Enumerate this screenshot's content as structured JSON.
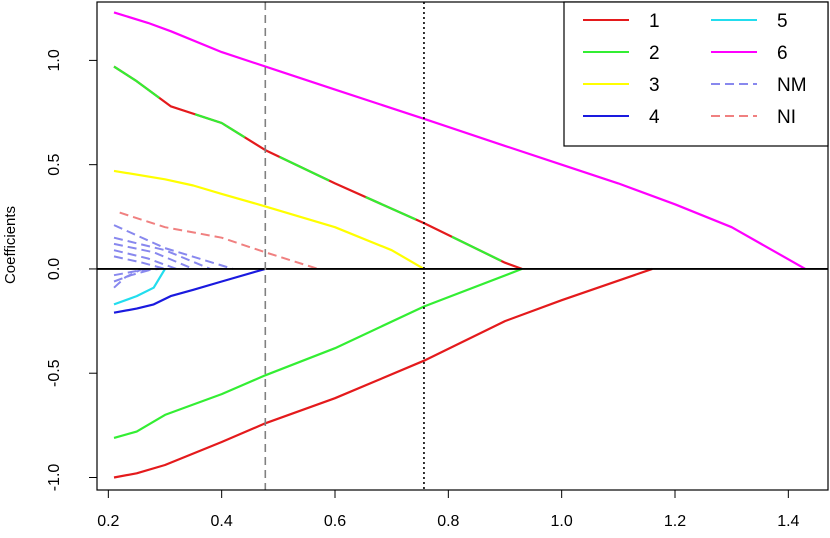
{
  "chart_data": {
    "type": "line",
    "title": "",
    "xlabel": "",
    "ylabel": "Coefficients",
    "xlim": [
      0.18,
      1.47
    ],
    "ylim": [
      -1.06,
      1.28
    ],
    "xticks": [
      0.2,
      0.4,
      0.6,
      0.8,
      1.0,
      1.2,
      1.4
    ],
    "xtick_labels": [
      "0.2",
      "0.4",
      "0.6",
      "0.8",
      "1.0",
      "1.2",
      "1.4"
    ],
    "yticks": [
      -1.0,
      -0.5,
      0.0,
      0.5,
      1.0
    ],
    "ytick_labels": [
      "-1.0",
      "-0.5",
      "0.0",
      "0.5",
      "1.0"
    ],
    "grid": false,
    "legend_position": "top-right",
    "vlines": [
      {
        "x": 0.477,
        "style": "dashed",
        "color": "#808080"
      },
      {
        "x": 0.757,
        "style": "dotted",
        "color": "#000000"
      }
    ],
    "hline": {
      "y": 0.0,
      "color": "#000000"
    },
    "legend": [
      {
        "label": "1",
        "color": "#e41a1c",
        "style": "solid"
      },
      {
        "label": "2",
        "color": "#33ee33",
        "style": "solid"
      },
      {
        "label": "3",
        "color": "#ffff00",
        "style": "solid"
      },
      {
        "label": "4",
        "color": "#1a1adf",
        "style": "solid"
      },
      {
        "label": "5",
        "color": "#22ddee",
        "style": "solid"
      },
      {
        "label": "6",
        "color": "#ff00ff",
        "style": "solid"
      },
      {
        "label": "NM",
        "color": "#8888ee",
        "style": "dashed"
      },
      {
        "label": "NI",
        "color": "#f08080",
        "style": "dashed"
      }
    ],
    "series": [
      {
        "color": "#ff00ff",
        "style": "solid",
        "width": 2.2,
        "x": [
          0.21,
          0.27,
          0.31,
          0.4,
          0.5,
          0.6,
          0.757,
          0.9,
          1.0,
          1.1,
          1.2,
          1.3,
          1.43
        ],
        "y": [
          1.23,
          1.18,
          1.14,
          1.04,
          0.95,
          0.86,
          0.72,
          0.59,
          0.5,
          0.41,
          0.31,
          0.2,
          0.0
        ]
      },
      {
        "color": "#e41a1c",
        "style": "solid",
        "width": 2.2,
        "x": [
          0.21,
          0.25,
          0.31,
          0.4,
          0.477,
          0.6,
          0.757,
          0.9,
          0.93
        ],
        "y": [
          0.97,
          0.9,
          0.78,
          0.7,
          0.57,
          0.41,
          0.22,
          0.03,
          0.0
        ]
      },
      {
        "color": "#33ee33",
        "style": "dashed",
        "width": 2.2,
        "dash": "55 40",
        "x": [
          0.21,
          0.25,
          0.31,
          0.4,
          0.477,
          0.6,
          0.757,
          0.9,
          0.93
        ],
        "y": [
          0.97,
          0.9,
          0.78,
          0.7,
          0.57,
          0.41,
          0.22,
          0.03,
          0.0
        ]
      },
      {
        "color": "#33ee33",
        "style": "solid",
        "width": 2.2,
        "x": [
          0.21,
          0.25,
          0.3,
          0.35,
          0.4,
          0.477,
          0.6,
          0.757,
          0.93
        ],
        "y": [
          -0.81,
          -0.78,
          -0.7,
          -0.65,
          -0.6,
          -0.51,
          -0.38,
          -0.18,
          0.0
        ]
      },
      {
        "color": "#e41a1c",
        "style": "solid",
        "width": 2.2,
        "x": [
          0.21,
          0.25,
          0.3,
          0.4,
          0.477,
          0.6,
          0.757,
          0.9,
          1.0,
          1.16
        ],
        "y": [
          -1.0,
          -0.98,
          -0.94,
          -0.83,
          -0.74,
          -0.62,
          -0.44,
          -0.25,
          -0.15,
          0.0
        ]
      },
      {
        "color": "#ffff00",
        "style": "solid",
        "width": 2.2,
        "x": [
          0.21,
          0.3,
          0.35,
          0.4,
          0.477,
          0.6,
          0.7,
          0.757
        ],
        "y": [
          0.47,
          0.43,
          0.4,
          0.36,
          0.3,
          0.2,
          0.09,
          0.0
        ]
      },
      {
        "color": "#1a1adf",
        "style": "solid",
        "width": 2.2,
        "x": [
          0.21,
          0.25,
          0.28,
          0.31,
          0.35,
          0.4,
          0.477
        ],
        "y": [
          -0.21,
          -0.19,
          -0.17,
          -0.13,
          -0.1,
          -0.06,
          0.0
        ]
      },
      {
        "color": "#22ddee",
        "style": "solid",
        "width": 2.2,
        "x": [
          0.21,
          0.25,
          0.28,
          0.3
        ],
        "y": [
          -0.17,
          -0.13,
          -0.09,
          0.0
        ]
      },
      {
        "color": "#f08080",
        "style": "dashed",
        "width": 2.0,
        "x": [
          0.22,
          0.3,
          0.4,
          0.477,
          0.57
        ],
        "y": [
          0.27,
          0.2,
          0.15,
          0.08,
          0.0
        ]
      },
      {
        "color": "#8888ee",
        "style": "dashed",
        "width": 2.0,
        "x": [
          0.21,
          0.3,
          0.42
        ],
        "y": [
          0.21,
          0.1,
          0.0
        ]
      },
      {
        "color": "#8888ee",
        "style": "dashed",
        "width": 2.0,
        "x": [
          0.21,
          0.3,
          0.38
        ],
        "y": [
          0.15,
          0.09,
          0.0
        ]
      },
      {
        "color": "#8888ee",
        "style": "dashed",
        "width": 2.0,
        "x": [
          0.21,
          0.28,
          0.35
        ],
        "y": [
          0.12,
          0.08,
          0.0
        ]
      },
      {
        "color": "#8888ee",
        "style": "dashed",
        "width": 2.0,
        "x": [
          0.21,
          0.27,
          0.32
        ],
        "y": [
          0.09,
          0.05,
          0.0
        ]
      },
      {
        "color": "#8888ee",
        "style": "dashed",
        "width": 2.0,
        "x": [
          0.21,
          0.26,
          0.3
        ],
        "y": [
          0.06,
          0.03,
          0.0
        ]
      },
      {
        "color": "#8888ee",
        "style": "dashed",
        "width": 2.0,
        "x": [
          0.21,
          0.25,
          0.29
        ],
        "y": [
          -0.03,
          -0.01,
          0.0
        ]
      },
      {
        "color": "#8888ee",
        "style": "dashed",
        "width": 2.0,
        "x": [
          0.21,
          0.24,
          0.28
        ],
        "y": [
          -0.06,
          -0.03,
          0.0
        ]
      },
      {
        "color": "#8888ee",
        "style": "dashed",
        "width": 2.0,
        "x": [
          0.21,
          0.23,
          0.26
        ],
        "y": [
          -0.09,
          -0.04,
          0.0
        ]
      }
    ]
  }
}
